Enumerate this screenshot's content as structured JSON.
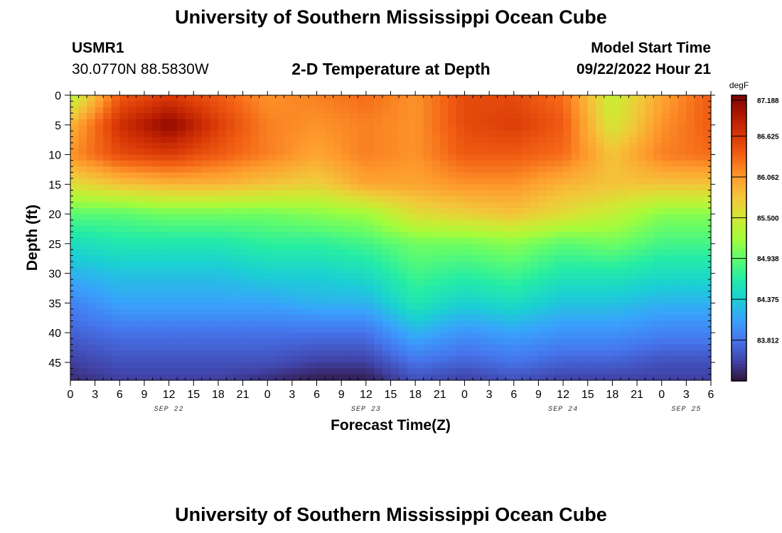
{
  "page": {
    "title_top": "University of Southern Mississippi Ocean Cube",
    "title_bottom": "University of Southern Mississippi Ocean Cube",
    "station_id": "USMR1",
    "station_coords": "30.0770N  88.5830W",
    "plot_title": "2-D Temperature at Depth",
    "model_start_label": "Model Start Time",
    "model_start_value": "09/22/2022 Hour 21"
  },
  "chart_data": {
    "type": "heatmap",
    "title": "2-D Temperature at Depth",
    "xlabel": "Forecast Time(Z)",
    "ylabel": "Depth (ft)",
    "x_tick_labels": [
      "0",
      "3",
      "6",
      "9",
      "12",
      "15",
      "18",
      "21",
      "0",
      "3",
      "6",
      "9",
      "12",
      "15",
      "18",
      "21",
      "0",
      "3",
      "6",
      "9",
      "12",
      "15",
      "18",
      "21",
      "0",
      "3",
      "6"
    ],
    "date_labels": [
      {
        "label": "SEP 22",
        "tick_index": 4
      },
      {
        "label": "SEP 23",
        "tick_index": 12
      },
      {
        "label": "SEP 24",
        "tick_index": 20
      },
      {
        "label": "SEP 25",
        "tick_index": 25
      }
    ],
    "x_range_hours": [
      0,
      78
    ],
    "y_ticks": [
      0,
      5,
      10,
      15,
      20,
      25,
      30,
      35,
      40,
      45
    ],
    "y_range_ft": [
      0,
      48
    ],
    "colorbar": {
      "units": "degF",
      "min": 83.25,
      "max": 87.188,
      "tick_values": [
        87.188,
        86.625,
        86.062,
        85.5,
        84.938,
        84.375,
        83.812
      ],
      "tick_labels": [
        "87.188",
        "86.625",
        "86.062",
        "85.500",
        "84.938",
        "84.375",
        "83.812"
      ]
    },
    "colormap": [
      "#30123b",
      "#4145ab",
      "#4675ed",
      "#39a2fc",
      "#1bcfd4",
      "#24eca6",
      "#61fc6c",
      "#a4fc3b",
      "#d1e834",
      "#f3c63a",
      "#fe9b2d",
      "#f36315",
      "#d93806",
      "#b11901",
      "#7a0402"
    ],
    "grid_hours": [
      0,
      6,
      12,
      18,
      24,
      30,
      36,
      42,
      48,
      54,
      60,
      66,
      72,
      78
    ],
    "grid_depths_ft": [
      0,
      5,
      10,
      15,
      20,
      25,
      30,
      35,
      40,
      45,
      48
    ],
    "temperature_degF": [
      [
        85.3,
        86.4,
        86.6,
        86.4,
        86.1,
        86.2,
        86.3,
        86.1,
        86.5,
        86.5,
        86.3,
        85.4,
        86.0,
        86.4
      ],
      [
        85.9,
        86.7,
        87.1,
        86.6,
        86.2,
        86.1,
        86.2,
        86.1,
        86.5,
        86.6,
        86.4,
        85.5,
        86.1,
        86.4
      ],
      [
        86.1,
        86.5,
        86.6,
        86.4,
        86.2,
        86.0,
        86.2,
        86.1,
        86.4,
        86.4,
        86.3,
        85.8,
        86.2,
        86.3
      ],
      [
        85.6,
        85.8,
        85.9,
        85.9,
        85.8,
        85.7,
        86.0,
        86.0,
        86.1,
        86.1,
        85.9,
        85.8,
        85.8,
        85.8
      ],
      [
        84.9,
        84.9,
        85.0,
        85.0,
        85.0,
        85.1,
        85.2,
        85.6,
        85.7,
        85.8,
        85.6,
        85.4,
        85.1,
        85.1
      ],
      [
        84.5,
        84.6,
        84.6,
        84.6,
        84.7,
        84.7,
        84.8,
        85.0,
        85.0,
        85.1,
        84.9,
        85.0,
        84.8,
        84.8
      ],
      [
        84.2,
        84.3,
        84.3,
        84.3,
        84.4,
        84.4,
        84.5,
        84.8,
        84.7,
        84.8,
        84.6,
        84.6,
        84.5,
        84.5
      ],
      [
        83.9,
        84.1,
        84.1,
        84.1,
        84.1,
        84.2,
        84.2,
        84.6,
        84.4,
        84.5,
        84.3,
        84.3,
        84.2,
        84.2
      ],
      [
        83.7,
        83.8,
        83.8,
        83.8,
        83.8,
        83.8,
        83.8,
        84.2,
        84.0,
        84.1,
        84.0,
        84.0,
        83.9,
        83.9
      ],
      [
        83.5,
        83.6,
        83.6,
        83.6,
        83.6,
        83.5,
        83.5,
        83.8,
        83.7,
        83.8,
        83.7,
        83.7,
        83.6,
        83.6
      ],
      [
        83.4,
        83.5,
        83.5,
        83.5,
        83.4,
        83.3,
        83.3,
        83.6,
        83.5,
        83.6,
        83.5,
        83.5,
        83.5,
        83.5
      ]
    ]
  }
}
